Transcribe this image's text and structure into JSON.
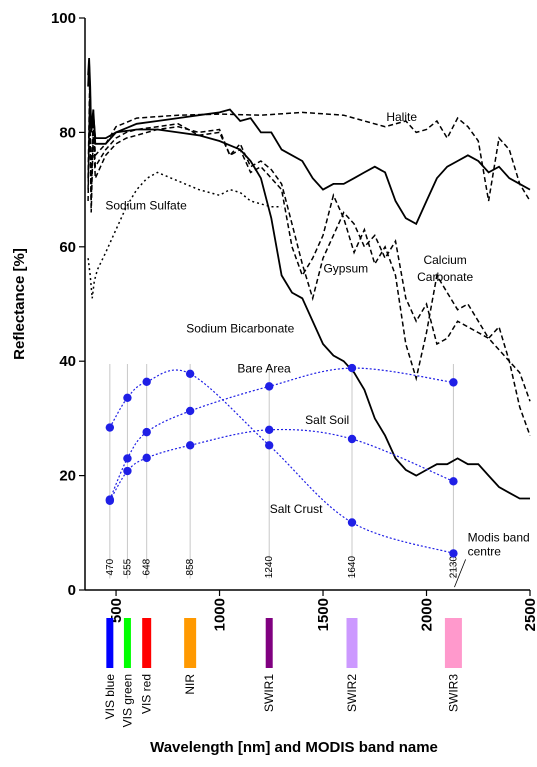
{
  "chart_data": {
    "type": "line",
    "xlabel": "Wavelength [nm] and MODIS band name",
    "ylabel": "Reflectance [%]",
    "xlim": [
      350,
      2500
    ],
    "ylim": [
      0,
      100
    ],
    "x_ticks": [
      500,
      1000,
      1500,
      2000,
      2500
    ],
    "y_ticks": [
      0,
      20,
      40,
      60,
      80,
      100
    ],
    "grid": false,
    "legend": "none",
    "spectra": [
      {
        "label": "Halite",
        "style": "dashed",
        "x": [
          365,
          372,
          380,
          390,
          400,
          450,
          500,
          600,
          800,
          1000,
          1200,
          1400,
          1600,
          1700,
          1800,
          1900,
          1950,
          2000,
          2050,
          2100,
          2150,
          2200,
          2250,
          2300,
          2350,
          2400,
          2450,
          2500
        ],
        "y": [
          72,
          88,
          70,
          84,
          76,
          78,
          81,
          82.5,
          83,
          83.2,
          83,
          83.5,
          83,
          82,
          81,
          82,
          80,
          80.5,
          82,
          79,
          82.5,
          81,
          78.5,
          68,
          79,
          77,
          71,
          68
        ]
      },
      {
        "label": "Sodium Sulfate",
        "style": "dotted",
        "x": [
          365,
          375,
          385,
          395,
          410,
          450,
          500,
          550,
          600,
          650,
          700,
          800,
          900,
          1000,
          1050,
          1100,
          1150,
          1200,
          1250,
          1300
        ],
        "y": [
          58,
          55,
          51,
          54,
          56,
          59,
          63,
          67,
          70,
          72,
          73,
          71.5,
          70,
          69,
          70,
          69.5,
          68,
          67.5,
          67,
          67
        ]
      },
      {
        "label": "Gypsum",
        "style": "dashed",
        "x": [
          365,
          372,
          380,
          390,
          400,
          450,
          500,
          550,
          600,
          700,
          800,
          900,
          1000,
          1050,
          1100,
          1150,
          1200,
          1250,
          1300,
          1350,
          1400,
          1450,
          1500,
          1550,
          1600,
          1650,
          1700,
          1750,
          1800,
          1850,
          1900,
          1950,
          2000,
          2050,
          2100,
          2150,
          2200,
          2250,
          2300,
          2350,
          2400,
          2450,
          2500
        ],
        "y": [
          68,
          86,
          66,
          80,
          72,
          76,
          78,
          79,
          79.5,
          80.5,
          81,
          80,
          80.5,
          76,
          78,
          74,
          75,
          73.5,
          71,
          64,
          57,
          51,
          58,
          62,
          66,
          64,
          60,
          62,
          58,
          61,
          51,
          47,
          50,
          43,
          44,
          47,
          46,
          45,
          44,
          42,
          40,
          38,
          33
        ]
      },
      {
        "label": "Calcium Carbonate",
        "style": "dashed",
        "x": [
          365,
          372,
          380,
          390,
          400,
          450,
          500,
          550,
          600,
          700,
          800,
          900,
          1000,
          1050,
          1100,
          1150,
          1200,
          1250,
          1300,
          1350,
          1400,
          1450,
          1500,
          1550,
          1600,
          1650,
          1700,
          1750,
          1800,
          1850,
          1900,
          1950,
          2000,
          2050,
          2100,
          2150,
          2200,
          2250,
          2300,
          2350,
          2400,
          2450,
          2500
        ],
        "y": [
          70,
          85,
          68,
          82,
          74,
          77,
          79,
          80,
          80.5,
          81,
          81.5,
          79.5,
          80,
          76,
          77,
          73,
          74,
          72,
          70,
          60,
          55,
          58,
          62,
          69,
          65,
          59,
          63,
          57,
          60,
          55,
          43,
          37,
          45,
          55,
          52,
          49,
          50,
          47,
          44,
          46,
          40,
          32,
          27
        ]
      },
      {
        "label": "Sodium Bicarbonate",
        "style": "solid",
        "x": [
          365,
          370,
          375,
          380,
          390,
          400,
          450,
          500,
          600,
          700,
          800,
          900,
          1000,
          1100,
          1150,
          1200,
          1250,
          1300,
          1350,
          1400,
          1450,
          1500,
          1550,
          1600,
          1650,
          1700,
          1750,
          1800,
          1850,
          1900,
          1950,
          2000,
          2050,
          2100,
          2150,
          2200,
          2250,
          2300,
          2350,
          2400,
          2450,
          2500
        ],
        "y": [
          88,
          92,
          86,
          80,
          83,
          79,
          79,
          80,
          80.5,
          80.5,
          80,
          79.5,
          78.5,
          77,
          75,
          72,
          65,
          55,
          52,
          51,
          47,
          43,
          41,
          40,
          38,
          35,
          30,
          27,
          23,
          21,
          20,
          21,
          22,
          22,
          23,
          22,
          22,
          20,
          18,
          17,
          16,
          16
        ]
      },
      {
        "label": "",
        "style": "solid",
        "x": [
          365,
          370,
          375,
          380,
          390,
          400,
          450,
          500,
          600,
          700,
          800,
          900,
          1000,
          1050,
          1100,
          1150,
          1200,
          1250,
          1300,
          1350,
          1400,
          1450,
          1500,
          1550,
          1600,
          1650,
          1700,
          1750,
          1800,
          1850,
          1900,
          1950,
          2000,
          2050,
          2100,
          2150,
          2200,
          2250,
          2300,
          2350,
          2400,
          2450,
          2500
        ],
        "y": [
          90,
          93,
          88,
          80,
          84,
          78,
          78,
          80,
          81.5,
          82,
          82.5,
          83,
          83.5,
          84,
          82,
          82.5,
          80,
          80,
          77,
          76,
          75,
          72,
          70,
          71,
          71,
          72,
          73,
          74,
          73,
          68,
          65,
          64,
          68,
          72,
          74,
          75,
          76,
          75,
          73,
          74,
          72,
          71,
          70
        ]
      }
    ],
    "modis_points": [
      {
        "label": "Bare Area",
        "x": [
          470,
          555,
          648,
          858,
          1240,
          1640,
          2130
        ],
        "y": [
          15.8,
          23.0,
          27.6,
          31.3,
          35.6,
          38.8,
          36.3
        ]
      },
      {
        "label": "Salt Soil",
        "x": [
          470,
          555,
          648,
          858,
          1240,
          1640,
          2130
        ],
        "y": [
          15.6,
          20.8,
          23.1,
          25.3,
          28.0,
          26.4,
          19.0
        ]
      },
      {
        "label": "Salt Crust",
        "x": [
          470,
          555,
          648,
          858,
          1240,
          1640,
          2130
        ],
        "y": [
          28.4,
          33.6,
          36.4,
          37.8,
          25.3,
          11.8,
          6.4
        ]
      }
    ],
    "curve_labels": [
      {
        "text": "Halite",
        "x": 1880,
        "y": 82
      },
      {
        "text": "Sodium Sulfate",
        "x": 645,
        "y": 66.5
      },
      {
        "text": "Gypsum",
        "x": 1610,
        "y": 55.5
      },
      {
        "text": "Calcium",
        "x": 2090,
        "y": 57
      },
      {
        "text": "Carbonate",
        "x": 2090,
        "y": 54
      },
      {
        "text": "Sodium Bicarbonate",
        "x": 1100,
        "y": 45
      },
      {
        "text": "Bare Area",
        "x": 1215,
        "y": 38
      },
      {
        "text": "Salt Soil",
        "x": 1520,
        "y": 29
      },
      {
        "text": "Salt Crust",
        "x": 1370,
        "y": 13.5
      }
    ],
    "band_centres": [
      {
        "name": "VIS blue",
        "nm": 470,
        "color": "#0000ff"
      },
      {
        "name": "VIS green",
        "nm": 555,
        "color": "#00ff00"
      },
      {
        "name": "VIS red",
        "nm": 648,
        "color": "#ff0000"
      },
      {
        "name": "NIR",
        "nm": 858,
        "color": "#ff9900"
      },
      {
        "name": "SWIR1",
        "nm": 1240,
        "color": "#800080"
      },
      {
        "name": "SWIR2",
        "nm": 1640,
        "color": "#cc99ff"
      },
      {
        "name": "SWIR3",
        "nm": 2130,
        "color": "#ff99cc"
      }
    ],
    "band_centre_labels": [
      "470",
      "555",
      "648",
      "858",
      "1240",
      "1640",
      "2130"
    ],
    "centre_annotation": [
      "Modis band",
      "centre"
    ],
    "marker_color": "#1f1fe6"
  }
}
